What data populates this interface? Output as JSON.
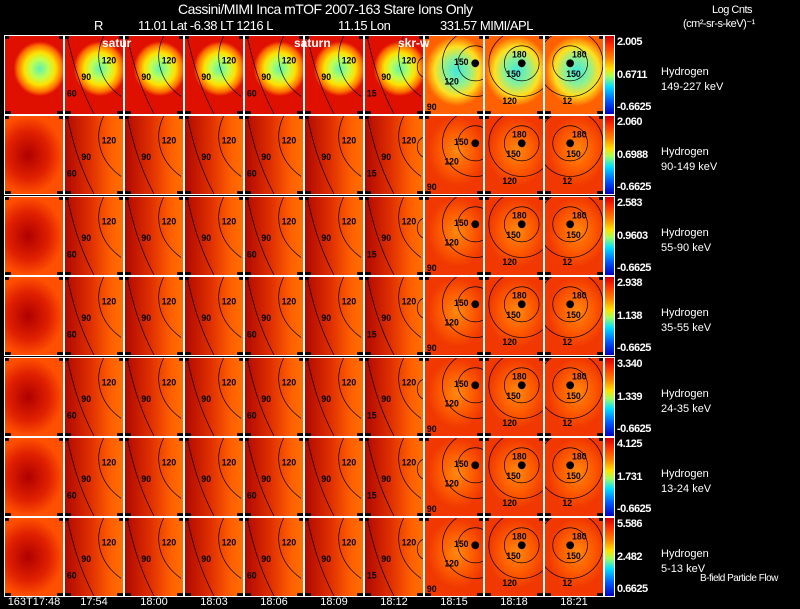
{
  "header": {
    "title": "Cassini/MIMI Inca mTOF  2007-163   Stare   Ions Only",
    "r_label": "R",
    "ephemeris": "11.01 Lat -6.38 LT 1216 L",
    "l_value": "11.15 Lon",
    "lon_value": "331.57  MIMI/APL",
    "units_line1": "Log Cnts",
    "units_line2": "(cm²-sr-s-keV)⁻¹"
  },
  "overlays": {
    "col2": "satur",
    "col6": "saturn",
    "col7": "skr-w"
  },
  "footer": {
    "legend": "B-field Particle Flow"
  },
  "chart_data": {
    "type": "heatmap",
    "title": "Cassini/MIMI Inca mTOF 2007-163 Stare Ions Only",
    "columns": [
      "163T17:48",
      "17:54",
      "18:00",
      "18:03",
      "18:06",
      "18:09",
      "18:12",
      "18:15",
      "18:18",
      "18:21"
    ],
    "rows": [
      {
        "species": "Hydrogen",
        "energy": "149-227 keV",
        "cmax": "2.005",
        "cmid": "0.6711",
        "cmin": "-0.6625",
        "level": 0.75
      },
      {
        "species": "Hydrogen",
        "energy": "90-149 keV",
        "cmax": "2.060",
        "cmid": "0.6988",
        "cmin": "-0.6625",
        "level": 0.35
      },
      {
        "species": "Hydrogen",
        "energy": "55-90 keV",
        "cmax": "2.583",
        "cmid": "0.9603",
        "cmin": "-0.6625",
        "level": 0.3
      },
      {
        "species": "Hydrogen",
        "energy": "35-55 keV",
        "cmax": "2.938",
        "cmid": "1.138",
        "cmin": "-0.6625",
        "level": 0.3
      },
      {
        "species": "Hydrogen",
        "energy": "24-35 keV",
        "cmax": "3.340",
        "cmid": "1.339",
        "cmin": "-0.6625",
        "level": 0.3
      },
      {
        "species": "Hydrogen",
        "energy": "13-24 keV",
        "cmax": "4.125",
        "cmid": "1.731",
        "cmin": "-0.6625",
        "level": 0.3
      },
      {
        "species": "Hydrogen",
        "energy": "5-13 keV",
        "cmax": "5.586",
        "cmid": "2.482",
        "cmin": "0.6625",
        "level": 0.3
      }
    ],
    "contour_labels": [
      [],
      [
        "90",
        "120",
        "60"
      ],
      [
        "90",
        "120"
      ],
      [
        "90",
        "120"
      ],
      [
        "90",
        "120",
        "60"
      ],
      [
        "90",
        "120"
      ],
      [
        "90",
        "120",
        "15"
      ],
      [
        "150",
        "120",
        "90"
      ],
      [
        "180",
        "150",
        "120"
      ],
      [
        "180",
        "150",
        "12"
      ]
    ],
    "colorscale": [
      "#0000c0",
      "#0060ff",
      "#00e0ff",
      "#a0ff60",
      "#ffe000",
      "#ff8000",
      "#ff3000",
      "#d00000"
    ]
  }
}
